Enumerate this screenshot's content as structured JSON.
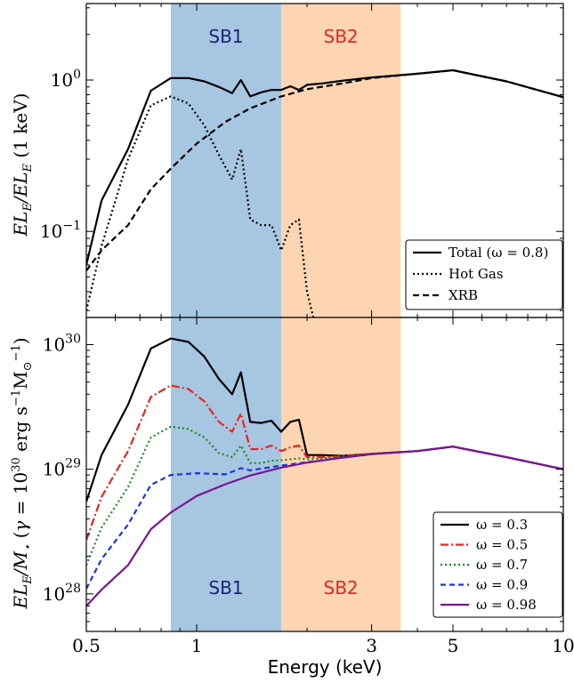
{
  "chart_data": [
    {
      "type": "line",
      "ylabel": "EL_E/EL_E (1 keV)",
      "xscale": "log",
      "yscale": "log",
      "xlim": [
        0.5,
        10
      ],
      "ylim": [
        0.027,
        3.2
      ],
      "yticks": [
        {
          "value": 0.1,
          "base": "10",
          "exp": "−1"
        },
        {
          "value": 1,
          "base": "10",
          "exp": "0"
        }
      ],
      "bands": [
        {
          "name": "SB1",
          "range": [
            0.85,
            1.7
          ],
          "fill": "#a7c6e1",
          "text_color": "#1a237e"
        },
        {
          "name": "SB2",
          "range": [
            1.7,
            3.6
          ],
          "fill": "#fdd5b2",
          "text_color": "#e8251e"
        }
      ],
      "legend_position": "lower right",
      "series": [
        {
          "name": "Total (ω = 0.8)",
          "color": "#000000",
          "dash": "",
          "x": [
            0.5,
            0.55,
            0.65,
            0.75,
            0.85,
            0.95,
            1.05,
            1.15,
            1.25,
            1.32,
            1.4,
            1.5,
            1.6,
            1.7,
            1.8,
            1.9,
            2.0,
            2.2,
            2.5,
            3.0,
            4.0,
            5.0,
            7.0,
            10.0
          ],
          "y": [
            0.06,
            0.16,
            0.35,
            0.85,
            1.03,
            1.03,
            0.98,
            0.9,
            0.82,
            1.0,
            0.78,
            0.83,
            0.86,
            0.86,
            0.91,
            0.86,
            0.93,
            0.95,
            0.99,
            1.04,
            1.1,
            1.16,
            0.98,
            0.77
          ]
        },
        {
          "name": "Hot Gas",
          "color": "#000000",
          "dash": "2,3",
          "x": [
            0.5,
            0.55,
            0.65,
            0.75,
            0.85,
            0.95,
            1.05,
            1.15,
            1.25,
            1.32,
            1.4,
            1.5,
            1.6,
            1.7,
            1.8,
            1.9,
            2.0,
            2.08
          ],
          "y": [
            0.03,
            0.08,
            0.3,
            0.68,
            0.78,
            0.7,
            0.5,
            0.32,
            0.22,
            0.35,
            0.12,
            0.11,
            0.11,
            0.075,
            0.11,
            0.12,
            0.04,
            0.027
          ]
        },
        {
          "name": "XRB",
          "color": "#000000",
          "dash": "7,4",
          "x": [
            0.5,
            0.55,
            0.65,
            0.75,
            0.85,
            1.0,
            1.2,
            1.4,
            1.7,
            2.0,
            2.5,
            3.0,
            4.0,
            5.0,
            7.0,
            10.0
          ],
          "y": [
            0.055,
            0.075,
            0.11,
            0.19,
            0.26,
            0.38,
            0.53,
            0.65,
            0.78,
            0.87,
            0.95,
            1.03,
            1.1,
            1.16,
            0.98,
            0.77
          ]
        }
      ]
    },
    {
      "type": "line",
      "xlabel": "Energy (keV)",
      "ylabel_main": "EL_E/M_⋆",
      "ylabel_note": "(γ = 10^30 erg s^−1 M_⊙^−1)",
      "xscale": "log",
      "yscale": "log",
      "xlim": [
        0.5,
        10
      ],
      "ylim": [
        5e+27,
        1.65e+30
      ],
      "xticks": [
        {
          "value": 0.5,
          "label": "0.5"
        },
        {
          "value": 1,
          "label": "1"
        },
        {
          "value": 3,
          "label": "3"
        },
        {
          "value": 5,
          "label": "5"
        },
        {
          "value": 10,
          "label": "10"
        }
      ],
      "yticks": [
        {
          "value": 1e+28,
          "base": "10",
          "exp": "28"
        },
        {
          "value": 1e+29,
          "base": "10",
          "exp": "29"
        },
        {
          "value": 1e+30,
          "base": "10",
          "exp": "30"
        }
      ],
      "bands": [
        {
          "name": "SB1",
          "range": [
            0.85,
            1.7
          ],
          "fill": "#a7c6e1",
          "text_color": "#1a237e"
        },
        {
          "name": "SB2",
          "range": [
            1.7,
            3.6
          ],
          "fill": "#fdd5b2",
          "text_color": "#e8251e"
        }
      ],
      "legend_position": "lower right",
      "series": [
        {
          "name": "ω = 0.3",
          "color": "#000000",
          "dash": "",
          "x": [
            0.5,
            0.55,
            0.65,
            0.75,
            0.85,
            0.95,
            1.05,
            1.15,
            1.25,
            1.32,
            1.4,
            1.5,
            1.6,
            1.7,
            1.8,
            1.9,
            2.0,
            2.2,
            2.5,
            3.0,
            4.0,
            5.0,
            7.0,
            10.0
          ],
          "y": [
            5.5e+28,
            1.3e+29,
            3.3e+29,
            9.3e+29,
            1.12e+30,
            1.05e+30,
            8e+29,
            5.3e+29,
            4e+29,
            6e+29,
            2.4e+29,
            2.35e+29,
            2.45e+29,
            2e+29,
            2.4e+29,
            2.5e+29,
            1.3e+29,
            1.3e+29,
            1.28e+29,
            1.33e+29,
            1.4e+29,
            1.52e+29,
            1.25e+29,
            1e+29
          ]
        },
        {
          "name": "ω = 0.5",
          "color": "#e8251e",
          "dash": "9,3,2,3",
          "x": [
            0.5,
            0.55,
            0.65,
            0.75,
            0.85,
            0.95,
            1.05,
            1.15,
            1.25,
            1.32,
            1.4,
            1.5,
            1.6,
            1.7,
            1.8,
            1.9,
            2.0,
            2.2,
            2.5,
            3.0,
            4.0,
            5.0,
            7.0,
            10.0
          ],
          "y": [
            2.7e+28,
            6e+28,
            1.4e+29,
            3.8e+29,
            4.7e+29,
            4.4e+29,
            3.5e+29,
            2.4e+29,
            2e+29,
            2.8e+29,
            1.45e+29,
            1.45e+29,
            1.55e+29,
            1.4e+29,
            1.5e+29,
            1.55e+29,
            1.25e+29,
            1.25e+29,
            1.27e+29,
            1.33e+29,
            1.4e+29,
            1.52e+29,
            1.25e+29,
            1e+29
          ]
        },
        {
          "name": "ω = 0.7",
          "color": "#1e8a1e",
          "dash": "2,3",
          "x": [
            0.5,
            0.55,
            0.65,
            0.75,
            0.85,
            0.95,
            1.05,
            1.15,
            1.25,
            1.32,
            1.4,
            1.5,
            1.6,
            1.7,
            1.8,
            1.9,
            2.0,
            2.2,
            2.5,
            3.0,
            4.0,
            5.0,
            7.0,
            10.0
          ],
          "y": [
            1.7e+28,
            3.4e+28,
            7.2e+28,
            1.8e+29,
            2.2e+29,
            2.1e+29,
            1.8e+29,
            1.35e+29,
            1.25e+29,
            1.55e+29,
            1.12e+29,
            1.12e+29,
            1.17e+29,
            1.18e+29,
            1.2e+29,
            1.22e+29,
            1.2e+29,
            1.22e+29,
            1.26e+29,
            1.33e+29,
            1.4e+29,
            1.52e+29,
            1.25e+29,
            1e+29
          ]
        },
        {
          "name": "ω = 0.9",
          "color": "#1a35e8",
          "dash": "6,4",
          "x": [
            0.5,
            0.55,
            0.65,
            0.75,
            0.85,
            1.0,
            1.2,
            1.32,
            1.4,
            1.7,
            2.0,
            2.5,
            3.0,
            4.0,
            5.0,
            7.0,
            10.0
          ],
          "y": [
            1.1e+28,
            1.9e+28,
            3.6e+28,
            7.5e+28,
            9e+28,
            9.3e+28,
            9.1e+28,
            1.02e+29,
            9.8e+28,
            1.07e+29,
            1.14e+29,
            1.24e+29,
            1.32e+29,
            1.4e+29,
            1.52e+29,
            1.25e+29,
            1e+29
          ]
        },
        {
          "name": "ω = 0.98",
          "color": "#7b1591",
          "dash": "",
          "x": [
            0.5,
            0.55,
            0.65,
            0.75,
            0.85,
            1.0,
            1.2,
            1.4,
            1.7,
            2.0,
            2.5,
            3.0,
            4.0,
            5.0,
            7.0,
            10.0
          ],
          "y": [
            8e+27,
            1.08e+28,
            1.7e+28,
            3.3e+28,
            4.5e+28,
            6.1e+28,
            7.6e+28,
            8.9e+28,
            1.03e+29,
            1.13e+29,
            1.24e+29,
            1.32e+29,
            1.4e+29,
            1.52e+29,
            1.25e+29,
            1e+29
          ]
        }
      ]
    }
  ]
}
